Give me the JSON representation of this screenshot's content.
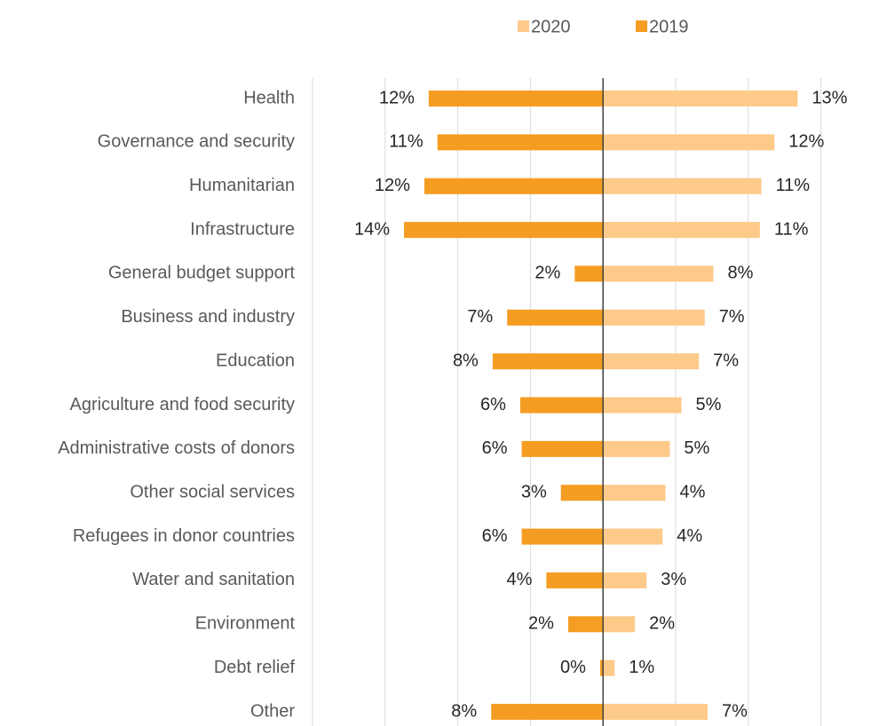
{
  "chart_data": {
    "type": "diverging-bar",
    "categories": [
      "Health",
      "Governance and security",
      "Humanitarian",
      "Infrastructure",
      "General budget support",
      "Business and industry",
      "Education",
      "Agriculture and food security",
      "Administrative costs of donors",
      "Other social services",
      "Refugees in donor countries",
      "Water and sanitation",
      "Environment",
      "Debt relief",
      "Other"
    ],
    "series": [
      {
        "name": "2020",
        "color": "#fdca8a",
        "direction": "right",
        "values": [
          13.4,
          11.8,
          10.9,
          10.8,
          7.6,
          7.0,
          6.6,
          5.4,
          4.6,
          4.3,
          4.1,
          3.0,
          2.2,
          0.8,
          7.2
        ],
        "value_labels": [
          "13%",
          "12%",
          "11%",
          "11%",
          "8%",
          "7%",
          "7%",
          "5%",
          "5%",
          "4%",
          "4%",
          "3%",
          "2%",
          "1%",
          "7%"
        ]
      },
      {
        "name": "2019",
        "color": "#f59d22",
        "direction": "left",
        "values": [
          12.0,
          11.4,
          12.3,
          13.7,
          1.95,
          6.6,
          7.6,
          5.7,
          5.6,
          2.9,
          5.6,
          3.9,
          2.4,
          0.2,
          7.7
        ],
        "value_labels": [
          "12%",
          "11%",
          "12%",
          "14%",
          "2%",
          "7%",
          "8%",
          "6%",
          "6%",
          "3%",
          "6%",
          "4%",
          "2%",
          "0%",
          "8%"
        ]
      }
    ],
    "xlim": [
      -20,
      19
    ],
    "xticks": [
      -20,
      -15,
      -10,
      -5,
      0,
      5,
      10,
      15
    ],
    "grid": true,
    "legend": "top"
  }
}
